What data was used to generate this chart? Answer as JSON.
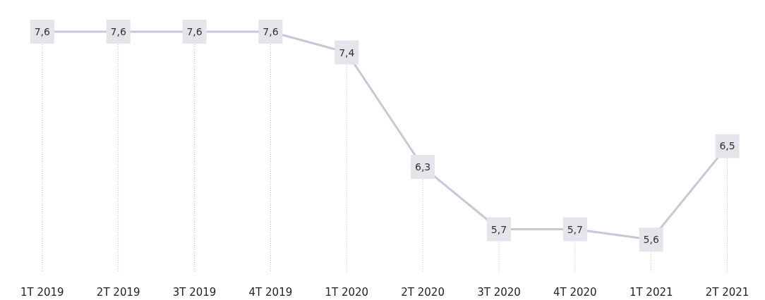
{
  "chart_data": {
    "type": "line",
    "categories": [
      "1T 2019",
      "2T 2019",
      "3T 2019",
      "4T 2019",
      "1T 2020",
      "2T 2020",
      "3T 2020",
      "4T 2020",
      "1T 2021",
      "2T 2021"
    ],
    "series": [
      {
        "color": "#c9c6d9",
        "values": [
          7.6,
          7.6,
          7.6,
          7.6,
          7.4,
          6.3,
          5.7,
          5.7,
          5.6,
          6.5
        ],
        "value_labels": [
          "7,6",
          "7,6",
          "7,6",
          "7,6",
          "7,4",
          "6,3",
          "5,7",
          "5,7",
          "5,6",
          "6,5"
        ]
      }
    ],
    "grid": "x",
    "marker": "square",
    "line_style": "solid"
  }
}
